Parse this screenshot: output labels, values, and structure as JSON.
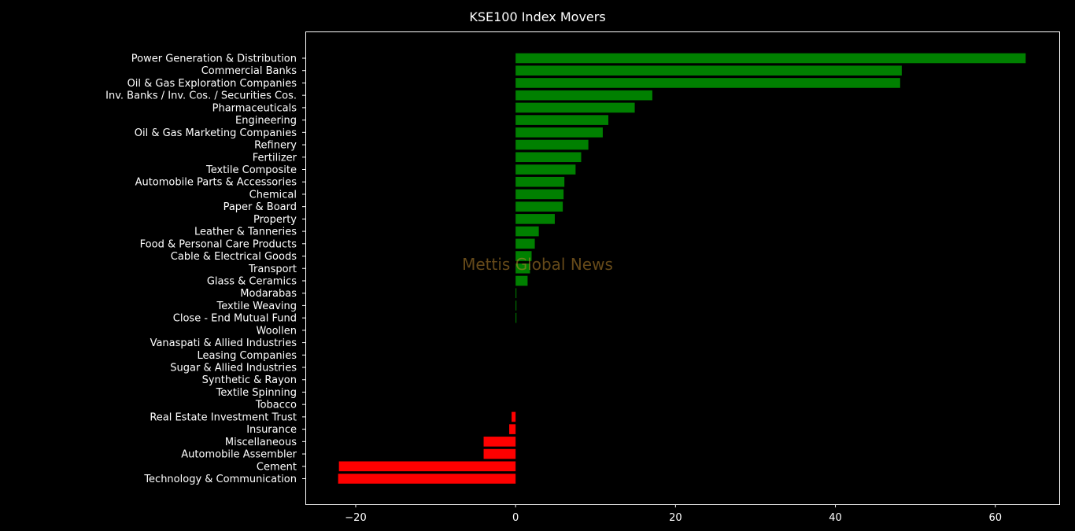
{
  "chart_data": {
    "type": "bar",
    "orientation": "horizontal",
    "title": "KSE100 Index Movers",
    "watermark": "Mettis Global News",
    "xlim": [
      -26.3,
      68.0
    ],
    "xticks": [
      -20,
      0,
      20,
      40,
      60
    ],
    "xtick_labels": [
      "−20",
      "0",
      "20",
      "40",
      "60"
    ],
    "colors": {
      "positive": "#008000",
      "negative": "#ff0000",
      "background": "#000000",
      "axes": "#ffffff",
      "text": "#ffffff"
    },
    "categories": [
      "Power Generation & Distribution",
      "Commercial Banks",
      "Oil & Gas Exploration Companies",
      "Inv. Banks / Inv. Cos. / Securities Cos.",
      "Pharmaceuticals",
      "Engineering",
      "Oil & Gas Marketing Companies",
      "Refinery",
      "Fertilizer",
      "Textile Composite",
      "Automobile Parts & Accessories",
      "Chemical",
      "Paper & Board",
      "Property",
      "Leather & Tanneries",
      "Food & Personal Care Products",
      "Cable & Electrical Goods",
      "Transport",
      "Glass & Ceramics",
      "Modarabas",
      "Textile Weaving",
      "Close - End Mutual Fund",
      "Woollen",
      "Vanaspati & Allied Industries",
      "Leasing Companies",
      "Sugar & Allied Industries",
      "Synthetic & Rayon",
      "Textile Spinning",
      "Tobacco",
      "Real Estate Investment Trust",
      "Insurance",
      "Miscellaneous",
      "Automobile Assembler",
      "Cement",
      "Technology & Communication"
    ],
    "values": [
      63.8,
      48.3,
      48.1,
      17.1,
      14.9,
      11.6,
      10.9,
      9.1,
      8.2,
      7.5,
      6.1,
      6.0,
      5.9,
      4.9,
      2.9,
      2.4,
      2.0,
      1.8,
      1.5,
      0.1,
      0.1,
      0.1,
      0.0,
      0.0,
      0.0,
      0.0,
      0.0,
      0.0,
      0.0,
      -0.5,
      -0.8,
      -4.0,
      -4.0,
      -22.1,
      -22.2
    ]
  }
}
